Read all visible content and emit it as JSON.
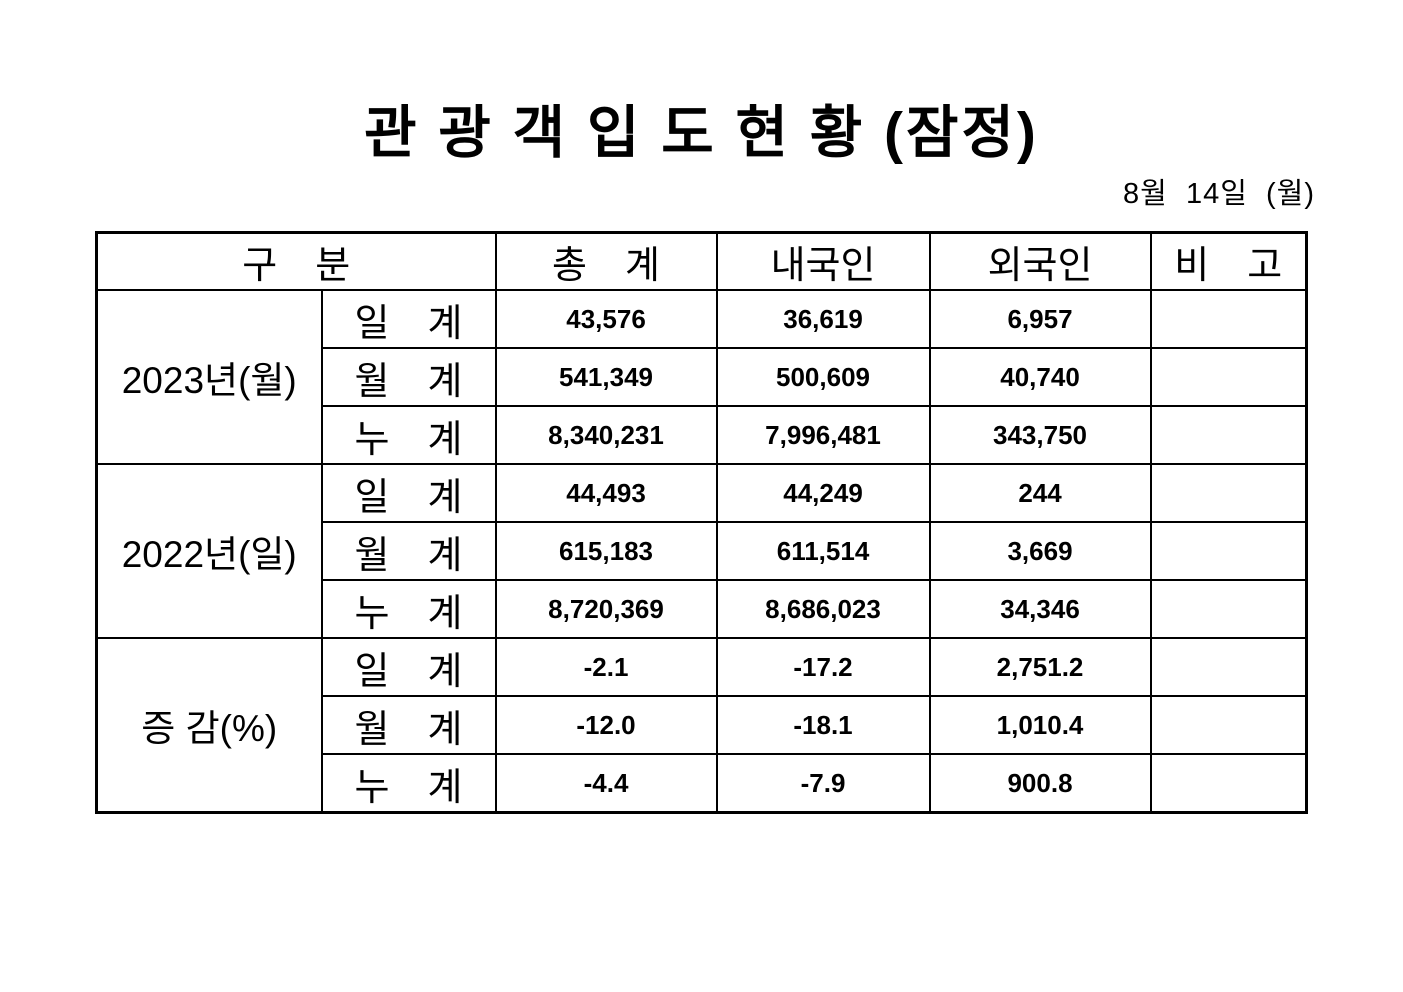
{
  "page": {
    "title": "관 광 객 입 도 현 황 (잠정)",
    "date": "8월  14일  (월)"
  },
  "colors": {
    "text": "#000000",
    "border": "#000000",
    "background": "#ffffff"
  },
  "table": {
    "headers": [
      "구　분",
      "총　계",
      "내국인",
      "외국인",
      "비　고"
    ],
    "sections": [
      {
        "label": "2023년(월)",
        "rows": [
          {
            "sub": "일　계",
            "total": "43,576",
            "domestic": "36,619",
            "foreign": "6,957",
            "note": ""
          },
          {
            "sub": "월　계",
            "total": "541,349",
            "domestic": "500,609",
            "foreign": "40,740",
            "note": ""
          },
          {
            "sub": "누　계",
            "total": "8,340,231",
            "domestic": "7,996,481",
            "foreign": "343,750",
            "note": ""
          }
        ]
      },
      {
        "label": "2022년(일)",
        "rows": [
          {
            "sub": "일　계",
            "total": "44,493",
            "domestic": "44,249",
            "foreign": "244",
            "note": ""
          },
          {
            "sub": "월　계",
            "total": "615,183",
            "domestic": "611,514",
            "foreign": "3,669",
            "note": ""
          },
          {
            "sub": "누　계",
            "total": "8,720,369",
            "domestic": "8,686,023",
            "foreign": "34,346",
            "note": ""
          }
        ]
      },
      {
        "label": "증 감(%)",
        "rows": [
          {
            "sub": "일　계",
            "total": "-2.1",
            "domestic": "-17.2",
            "foreign": "2,751.2",
            "note": ""
          },
          {
            "sub": "월　계",
            "total": "-12.0",
            "domestic": "-18.1",
            "foreign": "1,010.4",
            "note": ""
          },
          {
            "sub": "누　계",
            "total": "-4.4",
            "domestic": "-7.9",
            "foreign": "900.8",
            "note": ""
          }
        ]
      }
    ]
  }
}
